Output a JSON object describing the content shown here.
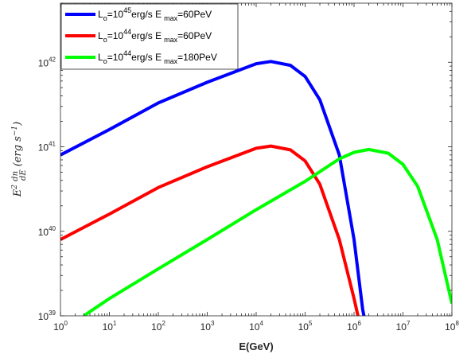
{
  "chart_data": {
    "type": "line",
    "title": "",
    "xlabel": "E(GeV)",
    "ylabel": "E^2 dn/dE (erg s^-1)",
    "x_scale": "log",
    "y_scale": "log",
    "xlim": [
      1,
      100000000
    ],
    "ylim": [
      1e+39,
      5e+42
    ],
    "grid": false,
    "legend_position": "top-left",
    "x_ticks": [
      {
        "base": "10",
        "exp": "0",
        "value": 1
      },
      {
        "base": "10",
        "exp": "1",
        "value": 10
      },
      {
        "base": "10",
        "exp": "2",
        "value": 100
      },
      {
        "base": "10",
        "exp": "3",
        "value": 1000
      },
      {
        "base": "10",
        "exp": "4",
        "value": 10000
      },
      {
        "base": "10",
        "exp": "5",
        "value": 100000
      },
      {
        "base": "10",
        "exp": "6",
        "value": 1000000
      },
      {
        "base": "10",
        "exp": "7",
        "value": 10000000
      },
      {
        "base": "10",
        "exp": "8",
        "value": 100000000
      }
    ],
    "y_ticks": [
      {
        "base": "10",
        "exp": "39",
        "value": 1e+39
      },
      {
        "base": "10",
        "exp": "40",
        "value": 1e+40
      },
      {
        "base": "10",
        "exp": "41",
        "value": 1e+41
      },
      {
        "base": "10",
        "exp": "42",
        "value": 1e+42
      }
    ],
    "series": [
      {
        "legend": {
          "l": "L",
          "l_sub": "o",
          "mid": "=10",
          "exp": "45",
          "unit": "erg/s E",
          "e_sub": "max",
          "val": "=60PeV"
        },
        "color": "#0000ff",
        "x": [
          1,
          10,
          100,
          1000,
          10000,
          20000,
          50000,
          100000,
          200000,
          500000,
          1000000,
          1500000,
          2000000
        ],
        "y": [
          8e+40,
          1.6e+41,
          3.3e+41,
          5.8e+41,
          9.6e+41,
          1.02e+42,
          9.2e+41,
          6.8e+41,
          3.6e+41,
          8e+40,
          8e+39,
          1.2e+39,
          5e+38
        ]
      },
      {
        "legend": {
          "l": "L",
          "l_sub": "o",
          "mid": "=10",
          "exp": "44",
          "unit": "erg/s E",
          "e_sub": "max",
          "val": "=60PeV"
        },
        "color": "#ff0000",
        "x": [
          1,
          10,
          100,
          1000,
          10000,
          20000,
          50000,
          100000,
          200000,
          500000,
          1000000,
          1250000
        ],
        "y": [
          8e+39,
          1.6e+40,
          3.3e+40,
          5.8e+40,
          9.6e+40,
          1.02e+41,
          9.2e+40,
          6.8e+40,
          3.6e+40,
          8e+39,
          1.6e+39,
          9e+38
        ]
      },
      {
        "legend": {
          "l": "L",
          "l_sub": "o",
          "mid": "=10",
          "exp": "44",
          "unit": "erg/s E",
          "e_sub": "max",
          "val": "=180PeV"
        },
        "color": "#00ff00",
        "x": [
          3,
          10,
          100,
          1000,
          10000,
          100000,
          500000,
          1000000,
          2000000,
          5000000,
          10000000,
          20000000,
          50000000,
          100000000
        ],
        "y": [
          1e+39,
          1.6e+39,
          3.6e+39,
          8e+39,
          1.8e+40,
          3.9e+40,
          7.2e+40,
          8.6e+40,
          9.3e+40,
          8.4e+40,
          6.2e+40,
          3.4e+40,
          8e+39,
          1.4e+39
        ]
      }
    ]
  }
}
